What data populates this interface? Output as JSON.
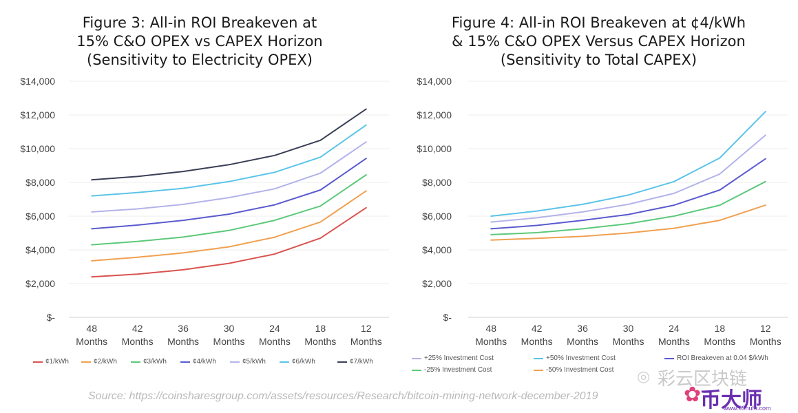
{
  "chart_data": [
    {
      "type": "line",
      "title": [
        "Figure 3: All-in ROI Breakeven at",
        "15% C&O OPEX vs CAPEX Horizon",
        "(Sensitivity to Electricity OPEX)"
      ],
      "categories": [
        [
          "48",
          "Months"
        ],
        [
          "42",
          "Months"
        ],
        [
          "36",
          "Months"
        ],
        [
          "30",
          "Months"
        ],
        [
          "24",
          "Months"
        ],
        [
          "18",
          "Months"
        ],
        [
          "12",
          "Months"
        ]
      ],
      "y_ticks": [
        "$14,000",
        "$12,000",
        "$10,000",
        "$8,000",
        "$6,000",
        "$4,000",
        "$2,000",
        "$-"
      ],
      "ylim": [
        0,
        14000
      ],
      "grid": true,
      "legend_position": "bottom",
      "series": [
        {
          "name": "¢1/kWh",
          "color": "#d9534f",
          "values": [
            2400,
            2560,
            2820,
            3200,
            3750,
            4700,
            6500
          ]
        },
        {
          "name": "¢2/kWh",
          "color": "#f0a050",
          "values": [
            3350,
            3560,
            3820,
            4180,
            4750,
            5650,
            7500
          ]
        },
        {
          "name": "¢3/kWh",
          "color": "#5cc97a",
          "values": [
            4300,
            4500,
            4760,
            5150,
            5750,
            6600,
            8450
          ]
        },
        {
          "name": "¢4/kWh",
          "color": "#5a5ad0",
          "values": [
            5250,
            5470,
            5750,
            6120,
            6670,
            7550,
            9420
          ]
        },
        {
          "name": "¢5/kWh",
          "color": "#b3b3ea",
          "values": [
            6250,
            6430,
            6700,
            7100,
            7620,
            8550,
            10400
          ]
        },
        {
          "name": "¢6/kWh",
          "color": "#5bc4e8",
          "values": [
            7200,
            7400,
            7650,
            8050,
            8600,
            9500,
            11400
          ]
        },
        {
          "name": "¢7/kWh",
          "color": "#3a3f55",
          "values": [
            8150,
            8350,
            8650,
            9050,
            9600,
            10500,
            12350
          ]
        }
      ]
    },
    {
      "type": "line",
      "title": [
        "Figure 4: All-in ROI Breakeven at ¢4/kWh",
        "& 15% C&O OPEX Versus CAPEX Horizon",
        "(Sensitivity to Total CAPEX)"
      ],
      "categories": [
        [
          "48",
          "Months"
        ],
        [
          "42",
          "Months"
        ],
        [
          "36",
          "Months"
        ],
        [
          "30",
          "Months"
        ],
        [
          "24",
          "Months"
        ],
        [
          "18",
          "Months"
        ],
        [
          "12",
          "Months"
        ]
      ],
      "y_ticks": [
        "$14,000",
        "$12,000",
        "$10,000",
        "$8,000",
        "$6,000",
        "$4,000",
        "$2,000",
        "$-"
      ],
      "ylim": [
        0,
        14000
      ],
      "grid": true,
      "legend_position": "bottom",
      "series": [
        {
          "name": "+25% Investment Cost",
          "color": "#b3b3ea",
          "values": [
            5650,
            5900,
            6250,
            6700,
            7350,
            8500,
            10800
          ]
        },
        {
          "name": "+50% Investment Cost",
          "color": "#5bc4e8",
          "values": [
            6000,
            6300,
            6700,
            7250,
            8050,
            9450,
            12200
          ]
        },
        {
          "name": "ROI Breakeven at 0.04 $/kWh",
          "color": "#5a5ad0",
          "values": [
            5250,
            5450,
            5750,
            6100,
            6650,
            7550,
            9400
          ]
        },
        {
          "name": "-25% Investment Cost",
          "color": "#5cc97a",
          "values": [
            4900,
            5020,
            5250,
            5550,
            6000,
            6650,
            8050
          ]
        },
        {
          "name": "-50% Investment Cost",
          "color": "#f0a050",
          "values": [
            4580,
            4680,
            4800,
            5000,
            5280,
            5750,
            6650
          ]
        }
      ]
    }
  ],
  "source": "Source: https://coinsharesgroup.com/assets/resources/Research/bitcoin-mining-network-december-2019",
  "watermark": {
    "line1": "彩云区块链",
    "line2": "币大师",
    "url": "www.99hufu.com"
  }
}
